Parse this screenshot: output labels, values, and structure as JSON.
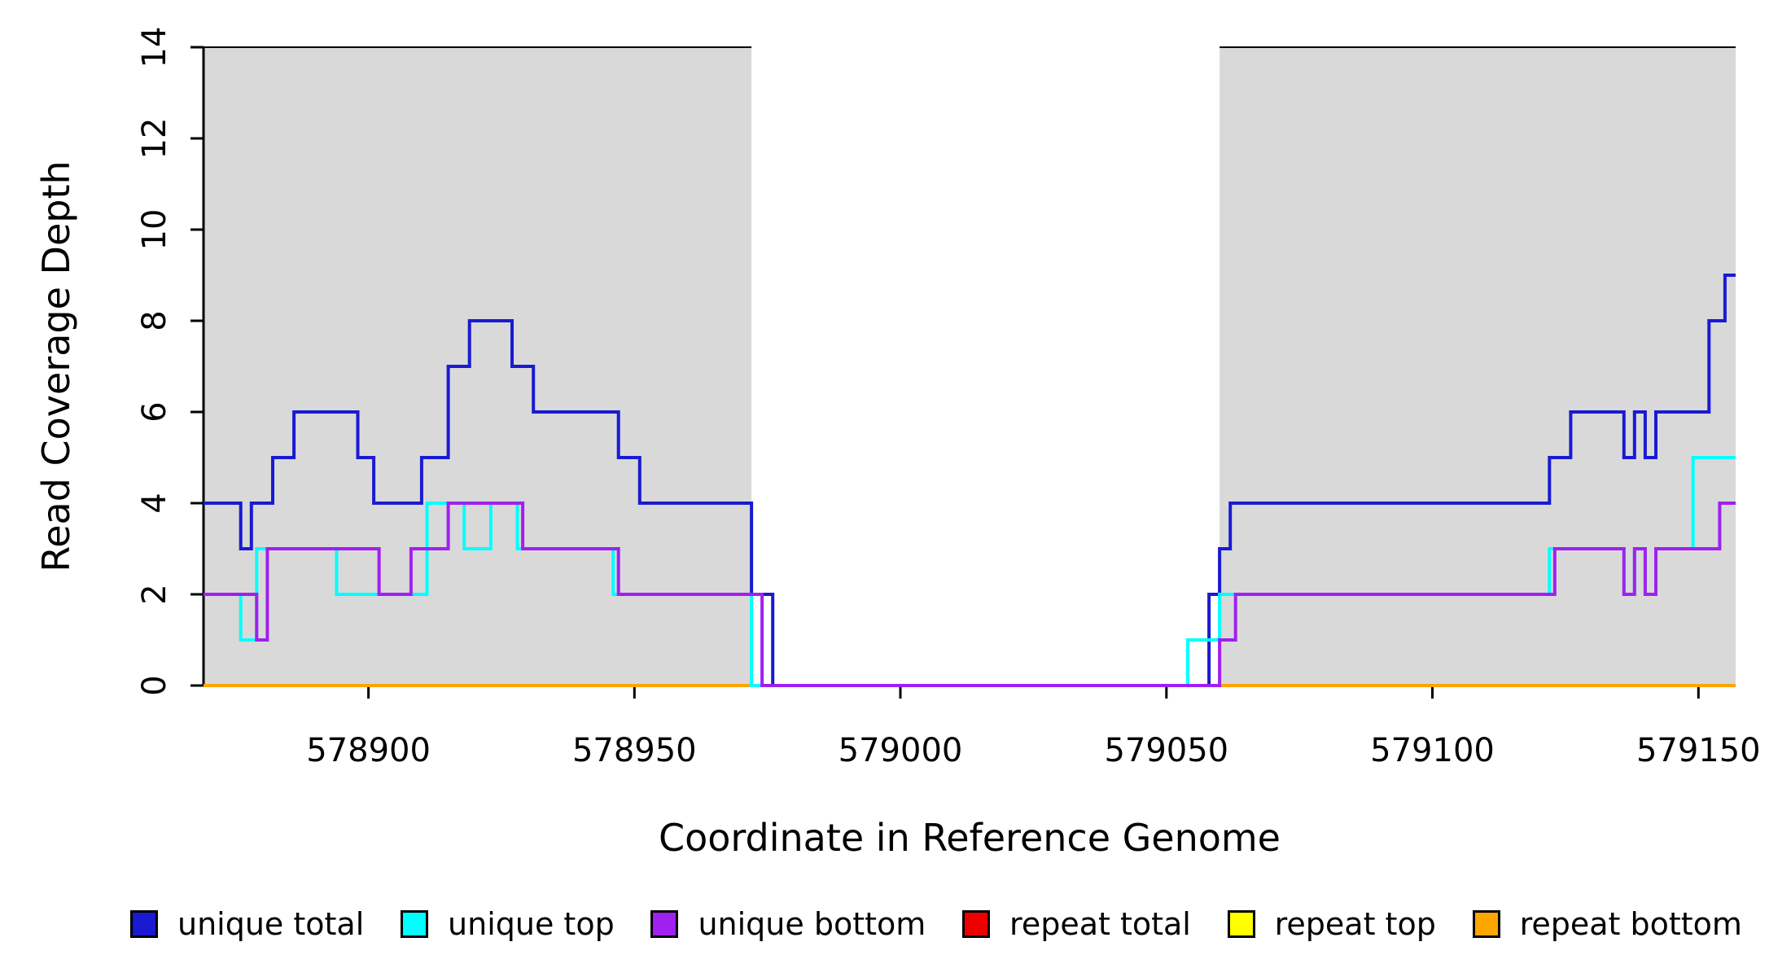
{
  "figure": {
    "background": "#ffffff",
    "text_color": "#000000"
  },
  "chart_data": {
    "type": "line",
    "line_style": "step",
    "title": "",
    "xlabel": "Coordinate in Reference Genome",
    "ylabel": "Read Coverage Depth",
    "xlim": [
      578869,
      579157
    ],
    "ylim": [
      0,
      14
    ],
    "x_ticks": [
      578900,
      578950,
      579000,
      579050,
      579100,
      579150
    ],
    "y_ticks": [
      0,
      2,
      4,
      6,
      8,
      10,
      12,
      14
    ],
    "grid": false,
    "shade_color": "#d9d9d9",
    "shaded_regions": [
      {
        "x0": 578869,
        "x1": 578972,
        "color": "#d9d9d9"
      },
      {
        "x0": 579060,
        "x1": 579157,
        "color": "#d9d9d9"
      }
    ],
    "draw_order": [
      3,
      4,
      5,
      0,
      1,
      2
    ],
    "series": [
      {
        "name": "unique total",
        "color": "#1a1ad2",
        "points": [
          [
            578869,
            4
          ],
          [
            578876,
            3
          ],
          [
            578878,
            4
          ],
          [
            578882,
            5
          ],
          [
            578886,
            6
          ],
          [
            578898,
            5
          ],
          [
            578901,
            4
          ],
          [
            578910,
            5
          ],
          [
            578915,
            7
          ],
          [
            578919,
            8
          ],
          [
            578927,
            7
          ],
          [
            578931,
            6
          ],
          [
            578947,
            5
          ],
          [
            578951,
            4
          ],
          [
            578972,
            2
          ],
          [
            578976,
            0
          ],
          [
            579058,
            2
          ],
          [
            579060,
            3
          ],
          [
            579062,
            4
          ],
          [
            579122,
            5
          ],
          [
            579126,
            6
          ],
          [
            579136,
            5
          ],
          [
            579138,
            6
          ],
          [
            579140,
            5
          ],
          [
            579142,
            6
          ],
          [
            579152,
            8
          ],
          [
            579155,
            9
          ]
        ]
      },
      {
        "name": "unique top",
        "color": "#00ffff",
        "points": [
          [
            578869,
            2
          ],
          [
            578876,
            1
          ],
          [
            578879,
            3
          ],
          [
            578894,
            2
          ],
          [
            578911,
            4
          ],
          [
            578918,
            3
          ],
          [
            578923,
            4
          ],
          [
            578928,
            3
          ],
          [
            578946,
            2
          ],
          [
            578972,
            0
          ],
          [
            579054,
            1
          ],
          [
            579060,
            2
          ],
          [
            579122,
            3
          ],
          [
            579136,
            2
          ],
          [
            579138,
            3
          ],
          [
            579140,
            2
          ],
          [
            579142,
            3
          ],
          [
            579149,
            5
          ]
        ]
      },
      {
        "name": "unique bottom",
        "color": "#a020f0",
        "points": [
          [
            578869,
            2
          ],
          [
            578879,
            1
          ],
          [
            578881,
            3
          ],
          [
            578902,
            2
          ],
          [
            578908,
            3
          ],
          [
            578915,
            4
          ],
          [
            578929,
            3
          ],
          [
            578947,
            2
          ],
          [
            578974,
            0
          ],
          [
            579060,
            1
          ],
          [
            579063,
            2
          ],
          [
            579123,
            3
          ],
          [
            579136,
            2
          ],
          [
            579138,
            3
          ],
          [
            579140,
            2
          ],
          [
            579142,
            3
          ],
          [
            579154,
            4
          ]
        ]
      },
      {
        "name": "repeat total",
        "color": "#ee0000",
        "points": [
          [
            578869,
            0
          ]
        ]
      },
      {
        "name": "repeat top",
        "color": "#ffff00",
        "points": [
          [
            578869,
            0
          ]
        ]
      },
      {
        "name": "repeat bottom",
        "color": "#ffa500",
        "points": [
          [
            578869,
            0
          ]
        ]
      }
    ],
    "legend": {
      "position": "bottom",
      "items": [
        {
          "label": "unique total",
          "color": "#1a1ad2"
        },
        {
          "label": "unique top",
          "color": "#00ffff"
        },
        {
          "label": "unique bottom",
          "color": "#a020f0"
        },
        {
          "label": "repeat total",
          "color": "#ee0000"
        },
        {
          "label": "repeat top",
          "color": "#ffff00"
        },
        {
          "label": "repeat bottom",
          "color": "#ffa500"
        }
      ]
    }
  }
}
